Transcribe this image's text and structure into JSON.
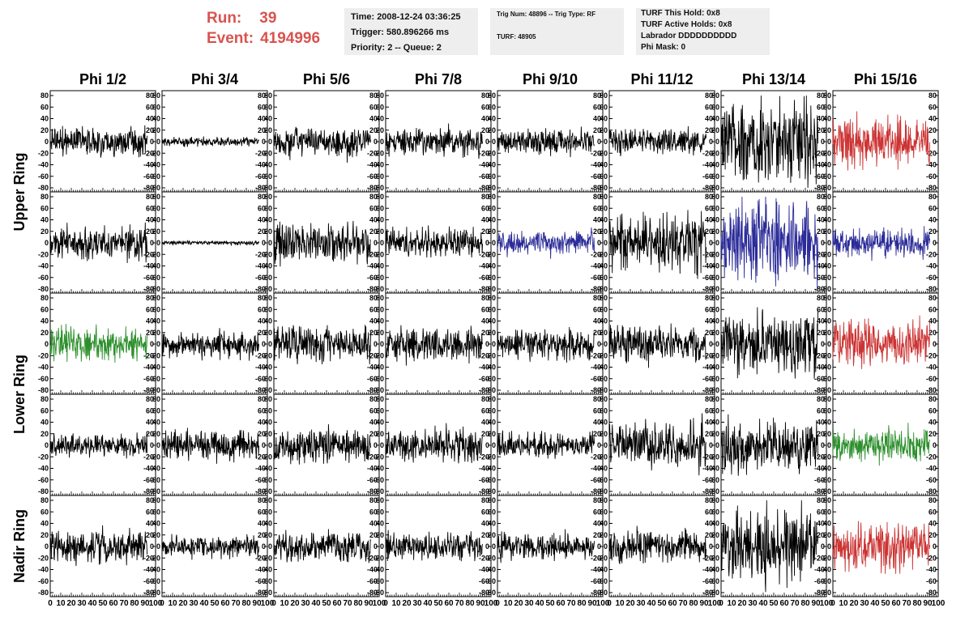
{
  "header": {
    "run_label": "Run:",
    "run_value": "39",
    "event_label": "Event:",
    "event_value": "4194996"
  },
  "info_time": {
    "time": "Time: 2008-12-24 03:36:25",
    "trigger": "Trigger: 580.896266 ms",
    "priority": "Priority: 2 -- Queue: 2"
  },
  "info_trig": {
    "trig": "Trig Num: 48896 -- Trig Type: RF",
    "turf": "TURF: 48905"
  },
  "info_turf": {
    "this_hold": "TURF This Hold: 0x8",
    "active_holds": "TURF Active Holds: 0x8",
    "labrador": "Labrador DDDDDDDDDD",
    "phi_mask": "Phi Mask: 0"
  },
  "colors": {
    "black": "#000000",
    "red": "#cc3333",
    "blue": "#2b2b99",
    "green": "#2c8f2c"
  },
  "chart_data": {
    "type": "line",
    "columns": [
      "Phi 1/2",
      "Phi 3/4",
      "Phi 5/6",
      "Phi 7/8",
      "Phi 9/10",
      "Phi 11/12",
      "Phi 13/14",
      "Phi 15/16"
    ],
    "row_groups": [
      {
        "label": "Upper Ring",
        "rows": [
          0,
          1
        ]
      },
      {
        "label": "Lower Ring",
        "rows": [
          2,
          3
        ]
      },
      {
        "label": "Nadir Ring",
        "rows": [
          4
        ]
      }
    ],
    "xlim": [
      0,
      100
    ],
    "ylim": [
      -80,
      80
    ],
    "x_ticks": [
      0,
      10,
      20,
      30,
      40,
      50,
      60,
      70,
      80,
      90,
      100
    ],
    "x_tick_labels": [
      "0",
      "10",
      "20",
      "30",
      "40",
      "50",
      "60",
      "70",
      "80",
      "90",
      "100"
    ],
    "y_ticks": [
      -80,
      -60,
      -40,
      -20,
      0,
      20,
      40,
      60,
      80
    ],
    "y_tick_labels": [
      "-80",
      "-60",
      "-40",
      "-20",
      "0",
      "20",
      "40",
      "60",
      "80"
    ],
    "trace_x_range": [
      0,
      92
    ],
    "panels": [
      [
        {
          "color": "black",
          "amp": 14
        },
        {
          "color": "black",
          "amp": 4
        },
        {
          "color": "black",
          "amp": 14
        },
        {
          "color": "black",
          "amp": 13
        },
        {
          "color": "black",
          "amp": 12
        },
        {
          "color": "black",
          "amp": 13
        },
        {
          "color": "black",
          "amp": 38
        },
        {
          "color": "red",
          "amp": 24
        }
      ],
      [
        {
          "color": "black",
          "amp": 15
        },
        {
          "color": "black",
          "amp": 2
        },
        {
          "color": "black",
          "amp": 18
        },
        {
          "color": "black",
          "amp": 13
        },
        {
          "color": "blue",
          "amp": 11
        },
        {
          "color": "black",
          "amp": 28
        },
        {
          "color": "blue",
          "amp": 38
        },
        {
          "color": "blue",
          "amp": 14
        }
      ],
      [
        {
          "color": "green",
          "amp": 15
        },
        {
          "color": "black",
          "amp": 13
        },
        {
          "color": "black",
          "amp": 16
        },
        {
          "color": "black",
          "amp": 16
        },
        {
          "color": "black",
          "amp": 14
        },
        {
          "color": "black",
          "amp": 16
        },
        {
          "color": "black",
          "amp": 30
        },
        {
          "color": "red",
          "amp": 22
        }
      ],
      [
        {
          "color": "black",
          "amp": 11
        },
        {
          "color": "black",
          "amp": 14
        },
        {
          "color": "black",
          "amp": 15
        },
        {
          "color": "black",
          "amp": 15
        },
        {
          "color": "black",
          "amp": 11
        },
        {
          "color": "black",
          "amp": 22
        },
        {
          "color": "black",
          "amp": 24
        },
        {
          "color": "green",
          "amp": 15
        }
      ],
      [
        {
          "color": "black",
          "amp": 15
        },
        {
          "color": "black",
          "amp": 10
        },
        {
          "color": "black",
          "amp": 14
        },
        {
          "color": "black",
          "amp": 13
        },
        {
          "color": "black",
          "amp": 12
        },
        {
          "color": "black",
          "amp": 14
        },
        {
          "color": "black",
          "amp": 35
        },
        {
          "color": "red",
          "amp": 22
        }
      ]
    ]
  }
}
